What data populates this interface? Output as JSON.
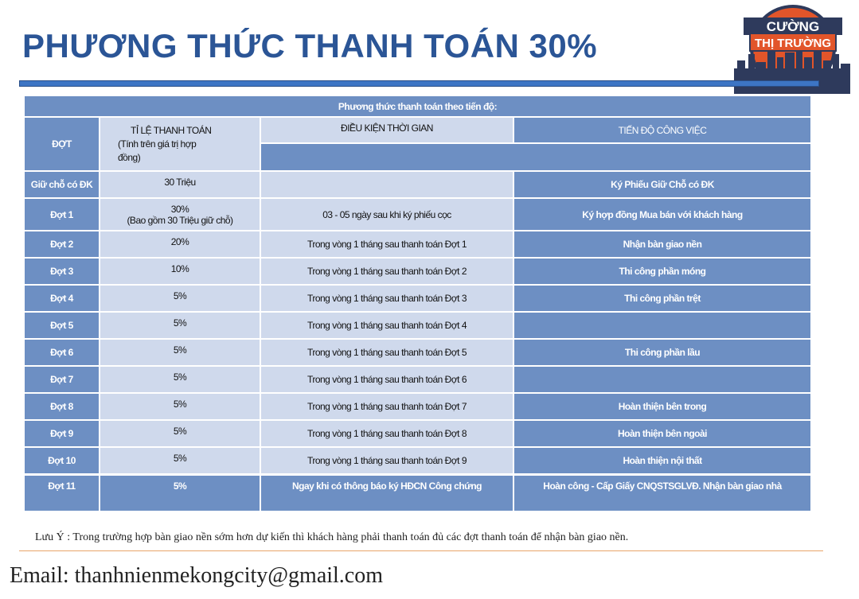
{
  "title": "PHƯƠNG THỨC THANH TOÁN 30%",
  "logo": {
    "line1": "CƯỜNG",
    "line2": "THỊ TRƯỜNG"
  },
  "table": {
    "caption": "Phương thức thanh toán theo tiến độ:",
    "headers": {
      "phase": "ĐỢT",
      "rate_line1": "TỈ LỆ THANH TOÁN",
      "rate_line2": "(Tính trên giá trị hợp",
      "rate_line3": "đồng)",
      "condition": "ĐIỀU KIỆN THỜI GIAN",
      "progress": "TIẾN ĐỘ CÔNG VIỆC"
    },
    "rows": [
      {
        "phase": "Giữ chỗ có ĐK",
        "rate": "30 Triệu",
        "rate_sub": "",
        "condition": "",
        "progress": "Ký Phiếu Giữ Chỗ có ĐK"
      },
      {
        "phase": "Đợt 1",
        "rate": "30%",
        "rate_sub": "(Bao gồm 30 Triệu giữ chỗ)",
        "condition": "03 - 05 ngày sau khi ký phiếu cọc",
        "progress": "Ký hợp đồng Mua bán với khách hàng"
      },
      {
        "phase": "Đợt 2",
        "rate": "20%",
        "rate_sub": "",
        "condition": "Trong vòng 1 tháng sau thanh toán Đợt 1",
        "progress": "Nhận bàn giao nền"
      },
      {
        "phase": "Đợt 3",
        "rate": "10%",
        "rate_sub": "",
        "condition": "Trong vòng 1 tháng sau thanh toán Đợt 2",
        "progress": "Thi công phần móng"
      },
      {
        "phase": "Đợt 4",
        "rate": "5%",
        "rate_sub": "",
        "condition": "Trong vòng 1 tháng sau thanh toán Đợt 3",
        "progress": "Thi công phần trệt"
      },
      {
        "phase": "Đợt 5",
        "rate": "5%",
        "rate_sub": "",
        "condition": "Trong vòng 1 tháng sau thanh toán Đợt 4",
        "progress": ""
      },
      {
        "phase": "Đợt 6",
        "rate": "5%",
        "rate_sub": "",
        "condition": "Trong vòng 1 tháng sau thanh toán Đợt 5",
        "progress": "Thi công phần lầu"
      },
      {
        "phase": "Đợt 7",
        "rate": "5%",
        "rate_sub": "",
        "condition": "Trong vòng 1 tháng sau thanh toán Đợt 6",
        "progress": ""
      },
      {
        "phase": "Đợt 8",
        "rate": "5%",
        "rate_sub": "",
        "condition": "Trong vòng 1 tháng sau thanh toán Đợt 7",
        "progress": "Hoàn thiện bên trong"
      },
      {
        "phase": "Đợt 9",
        "rate": "5%",
        "rate_sub": "",
        "condition": "Trong vòng 1 tháng sau thanh toán Đợt 8",
        "progress": "Hoàn thiện bên ngoài"
      },
      {
        "phase": "Đợt 10",
        "rate": "5%",
        "rate_sub": "",
        "condition": "Trong vòng 1 tháng sau thanh toán Đợt 9",
        "progress": "Hoàn thiện nội thất"
      },
      {
        "phase": "Đợt 11",
        "rate": "5%",
        "rate_sub": "",
        "condition": "Ngay khi có thông báo ký HĐCN Công chứng",
        "progress": "Hoàn công - Cấp Giấy CNQSTSGLVĐ.  Nhận bàn giao nhà"
      }
    ]
  },
  "note": "Lưu Ý : Trong  trường hợp bàn giao nền sớm hơn dự kiến thì khách  hàng  phải  thanh toán đủ các đợt thanh toán để nhận bàn giao nền.",
  "email": "Email: thanhnienmekongcity@gmail.com",
  "colors": {
    "title": "#2b5596",
    "header_blue": "#6d8fc3",
    "light_cell": "#cfd9ec",
    "logo_ring": "#e2552a",
    "logo_navy": "#2e3a5c"
  }
}
